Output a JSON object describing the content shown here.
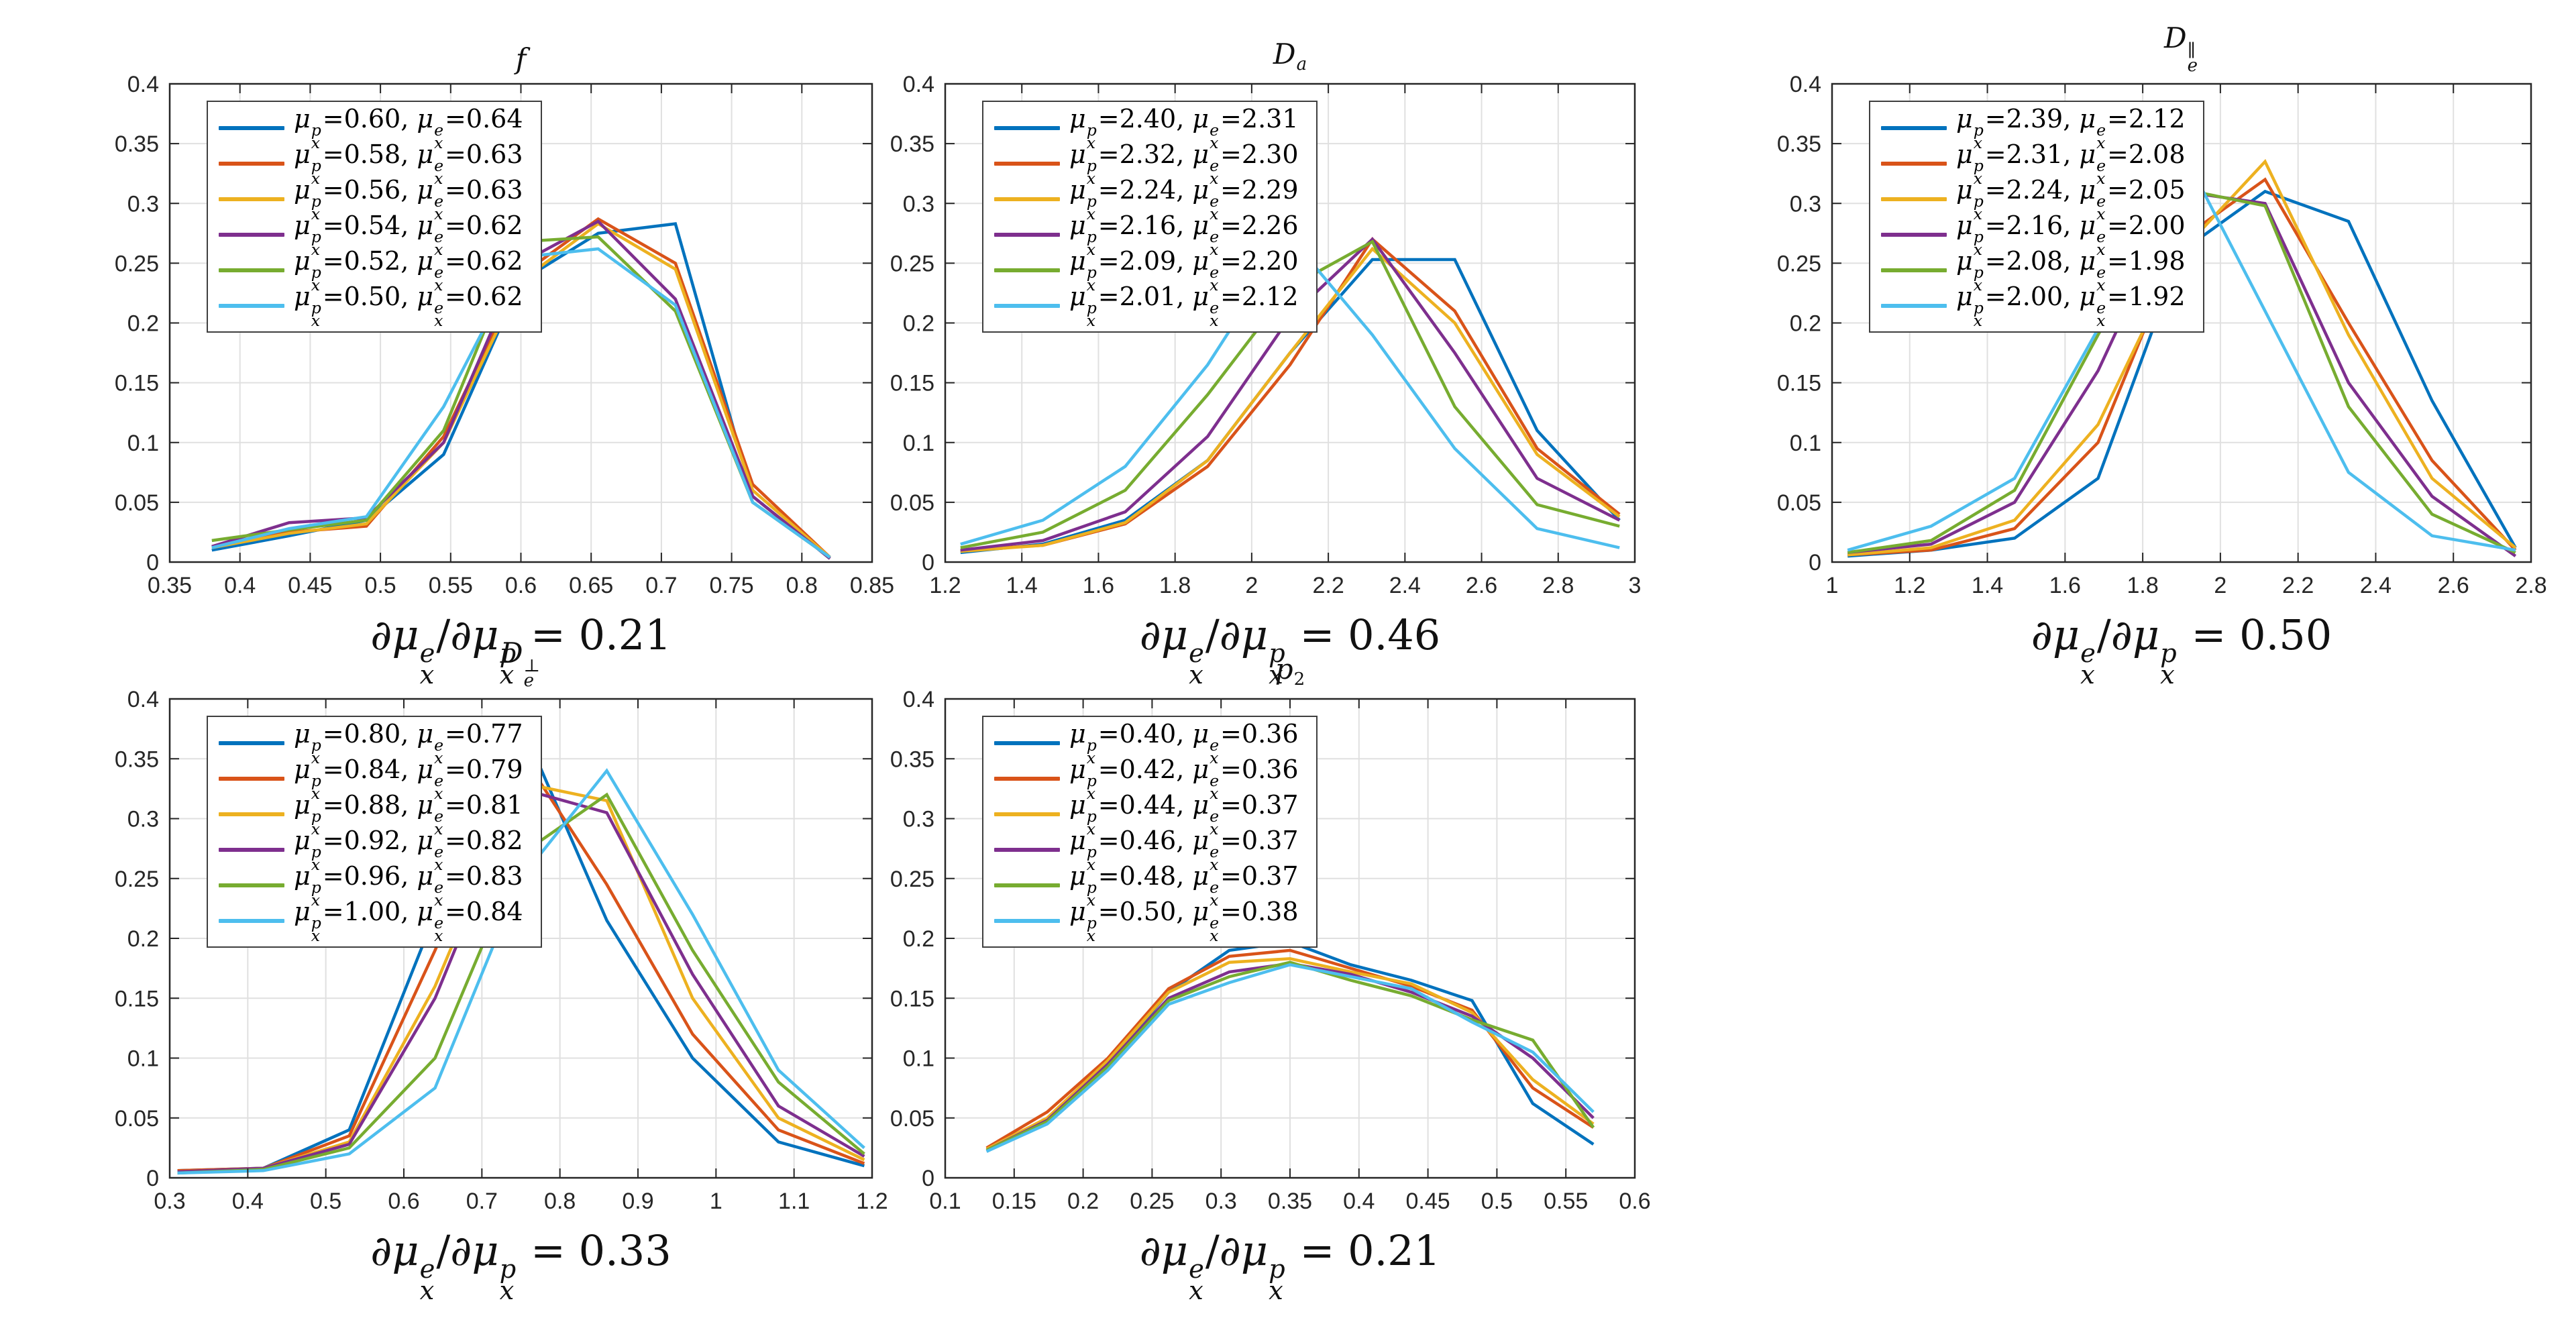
{
  "figure": {
    "background": "#ffffff",
    "series_colors": [
      "#0072bd",
      "#d95319",
      "#edb120",
      "#7e2f8e",
      "#77ac30",
      "#4dbeee"
    ],
    "grid_color": "#e0e0e0",
    "axis_color": "#262626",
    "text_color": "#262626"
  },
  "math": {
    "mu": "μ",
    "partial": "∂",
    "sub_x": "x",
    "sup_p": "p",
    "sup_e": "e",
    "equals": "=",
    "comma": ", ",
    "slash": "/"
  },
  "chart_data": [
    {
      "type": "line",
      "title": {
        "base": "f",
        "sub": "",
        "sup": ""
      },
      "xlabel_lhs": "∂μ_x^e/∂μ_x^p",
      "xlabel_value": "0.21",
      "legend_position": "top-left",
      "grid": true,
      "xlim": [
        0.35,
        0.85
      ],
      "ylim": [
        0,
        0.4
      ],
      "xtick_values": [
        0.35,
        0.4,
        0.45,
        0.5,
        0.55,
        0.6,
        0.65,
        0.7,
        0.75,
        0.8,
        0.85
      ],
      "xtick_labels": [
        "0.35",
        "0.4",
        "0.45",
        "0.5",
        "0.55",
        "0.6",
        "0.65",
        "0.7",
        "0.75",
        "0.8",
        "0.85"
      ],
      "ytick_values": [
        0,
        0.05,
        0.1,
        0.15,
        0.2,
        0.25,
        0.3,
        0.35,
        0.4
      ],
      "ytick_labels": [
        "0",
        "0.05",
        "0.1",
        "0.15",
        "0.2",
        "0.25",
        "0.3",
        "0.35",
        "0.4"
      ],
      "x": [
        0.38,
        0.435,
        0.49,
        0.545,
        0.6,
        0.655,
        0.71,
        0.765,
        0.82
      ],
      "series": [
        {
          "mu_p": "0.60",
          "mu_e": "0.64",
          "values": [
            0.01,
            0.022,
            0.035,
            0.09,
            0.235,
            0.275,
            0.283,
            0.055,
            0.003
          ]
        },
        {
          "mu_p": "0.58",
          "mu_e": "0.63",
          "values": [
            0.012,
            0.025,
            0.03,
            0.105,
            0.24,
            0.287,
            0.25,
            0.065,
            0.004
          ]
        },
        {
          "mu_p": "0.56",
          "mu_e": "0.63",
          "values": [
            0.012,
            0.024,
            0.032,
            0.1,
            0.235,
            0.283,
            0.245,
            0.06,
            0.004
          ]
        },
        {
          "mu_p": "0.54",
          "mu_e": "0.62",
          "values": [
            0.013,
            0.033,
            0.037,
            0.1,
            0.25,
            0.285,
            0.22,
            0.055,
            0.003
          ]
        },
        {
          "mu_p": "0.52",
          "mu_e": "0.62",
          "values": [
            0.018,
            0.027,
            0.035,
            0.11,
            0.268,
            0.272,
            0.21,
            0.05,
            0.004
          ]
        },
        {
          "mu_p": "0.50",
          "mu_e": "0.62",
          "values": [
            0.012,
            0.028,
            0.038,
            0.13,
            0.255,
            0.262,
            0.215,
            0.05,
            0.004
          ]
        }
      ]
    },
    {
      "type": "line",
      "title": {
        "base": "D",
        "sub": "a",
        "sup": ""
      },
      "xlabel_lhs": "∂μ_x^e/∂μ_x^p",
      "xlabel_value": "0.46",
      "legend_position": "top-left",
      "grid": true,
      "xlim": [
        1.2,
        3
      ],
      "ylim": [
        0,
        0.4
      ],
      "xtick_values": [
        1.2,
        1.4,
        1.6,
        1.8,
        2,
        2.2,
        2.4,
        2.6,
        2.8,
        3
      ],
      "xtick_labels": [
        "1.2",
        "1.4",
        "1.6",
        "1.8",
        "2",
        "2.2",
        "2.4",
        "2.6",
        "2.8",
        "3"
      ],
      "ytick_values": [
        0,
        0.05,
        0.1,
        0.15,
        0.2,
        0.25,
        0.3,
        0.35,
        0.4
      ],
      "ytick_labels": [
        "0",
        "0.05",
        "0.1",
        "0.15",
        "0.2",
        "0.25",
        "0.3",
        "0.35",
        "0.4"
      ],
      "x": [
        1.24,
        1.455,
        1.67,
        1.885,
        2.1,
        2.315,
        2.53,
        2.745,
        2.96
      ],
      "series": [
        {
          "mu_p": "2.40",
          "mu_e": "2.31",
          "values": [
            0.008,
            0.015,
            0.035,
            0.085,
            0.175,
            0.253,
            0.253,
            0.11,
            0.035
          ]
        },
        {
          "mu_p": "2.32",
          "mu_e": "2.30",
          "values": [
            0.01,
            0.014,
            0.032,
            0.08,
            0.165,
            0.27,
            0.21,
            0.095,
            0.04
          ]
        },
        {
          "mu_p": "2.24",
          "mu_e": "2.29",
          "values": [
            0.009,
            0.014,
            0.033,
            0.085,
            0.175,
            0.262,
            0.2,
            0.09,
            0.038
          ]
        },
        {
          "mu_p": "2.16",
          "mu_e": "2.26",
          "values": [
            0.01,
            0.018,
            0.042,
            0.105,
            0.205,
            0.27,
            0.175,
            0.07,
            0.035
          ]
        },
        {
          "mu_p": "2.09",
          "mu_e": "2.20",
          "values": [
            0.012,
            0.025,
            0.06,
            0.14,
            0.23,
            0.268,
            0.13,
            0.048,
            0.03
          ]
        },
        {
          "mu_p": "2.01",
          "mu_e": "2.12",
          "values": [
            0.015,
            0.035,
            0.08,
            0.165,
            0.272,
            0.19,
            0.095,
            0.028,
            0.012
          ]
        }
      ]
    },
    {
      "type": "line",
      "title": {
        "base": "D",
        "sub": "e",
        "sup": "∥"
      },
      "xlabel_lhs": "∂μ_x^e/∂μ_x^p",
      "xlabel_value": "0.50",
      "legend_position": "top-left",
      "grid": true,
      "xlim": [
        1,
        2.8
      ],
      "ylim": [
        0,
        0.4
      ],
      "xtick_values": [
        1,
        1.2,
        1.4,
        1.6,
        1.8,
        2,
        2.2,
        2.4,
        2.6,
        2.8
      ],
      "xtick_labels": [
        "1",
        "1.2",
        "1.4",
        "1.6",
        "1.8",
        "2",
        "2.2",
        "2.4",
        "2.6",
        "2.8"
      ],
      "ytick_values": [
        0,
        0.05,
        0.1,
        0.15,
        0.2,
        0.25,
        0.3,
        0.35,
        0.4
      ],
      "ytick_labels": [
        "0",
        "0.05",
        "0.1",
        "0.15",
        "0.2",
        "0.25",
        "0.3",
        "0.35",
        "0.4"
      ],
      "x": [
        1.04,
        1.255,
        1.47,
        1.685,
        1.9,
        2.115,
        2.33,
        2.545,
        2.76
      ],
      "series": [
        {
          "mu_p": "2.39",
          "mu_e": "2.12",
          "values": [
            0.005,
            0.01,
            0.02,
            0.07,
            0.26,
            0.31,
            0.285,
            0.135,
            0.012
          ]
        },
        {
          "mu_p": "2.31",
          "mu_e": "2.08",
          "values": [
            0.006,
            0.01,
            0.028,
            0.1,
            0.27,
            0.32,
            0.2,
            0.085,
            0.01
          ]
        },
        {
          "mu_p": "2.24",
          "mu_e": "2.05",
          "values": [
            0.006,
            0.012,
            0.035,
            0.115,
            0.26,
            0.335,
            0.19,
            0.07,
            0.012
          ]
        },
        {
          "mu_p": "2.16",
          "mu_e": "2.00",
          "values": [
            0.008,
            0.015,
            0.05,
            0.16,
            0.31,
            0.3,
            0.15,
            0.055,
            0.005
          ]
        },
        {
          "mu_p": "2.08",
          "mu_e": "1.98",
          "values": [
            0.008,
            0.018,
            0.06,
            0.19,
            0.312,
            0.298,
            0.13,
            0.04,
            0.008
          ]
        },
        {
          "mu_p": "2.00",
          "mu_e": "1.92",
          "values": [
            0.01,
            0.03,
            0.07,
            0.195,
            0.345,
            0.21,
            0.075,
            0.022,
            0.01
          ]
        }
      ]
    },
    {
      "type": "line",
      "title": {
        "base": "D",
        "sub": "e",
        "sup": "⊥"
      },
      "xlabel_lhs": "∂μ_x^e/∂μ_x^p",
      "xlabel_value": "0.33",
      "legend_position": "top-left",
      "grid": true,
      "xlim": [
        0.3,
        1.2
      ],
      "ylim": [
        0,
        0.4
      ],
      "xtick_values": [
        0.3,
        0.4,
        0.5,
        0.6,
        0.7,
        0.8,
        0.9,
        1,
        1.1,
        1.2
      ],
      "xtick_labels": [
        "0.3",
        "0.4",
        "0.5",
        "0.6",
        "0.7",
        "0.8",
        "0.9",
        "1",
        "1.1",
        "1.2"
      ],
      "ytick_values": [
        0,
        0.05,
        0.1,
        0.15,
        0.2,
        0.25,
        0.3,
        0.35,
        0.4
      ],
      "ytick_labels": [
        "0",
        "0.05",
        "0.1",
        "0.15",
        "0.2",
        "0.25",
        "0.3",
        "0.35",
        "0.4"
      ],
      "x": [
        0.31,
        0.42,
        0.53,
        0.64,
        0.75,
        0.86,
        0.97,
        1.08,
        1.19
      ],
      "series": [
        {
          "mu_p": "0.80",
          "mu_e": "0.77",
          "values": [
            0.006,
            0.008,
            0.04,
            0.22,
            0.38,
            0.215,
            0.1,
            0.03,
            0.01
          ]
        },
        {
          "mu_p": "0.84",
          "mu_e": "0.79",
          "values": [
            0.006,
            0.008,
            0.035,
            0.19,
            0.355,
            0.245,
            0.12,
            0.04,
            0.012
          ]
        },
        {
          "mu_p": "0.88",
          "mu_e": "0.81",
          "values": [
            0.005,
            0.008,
            0.03,
            0.16,
            0.33,
            0.315,
            0.15,
            0.05,
            0.015
          ]
        },
        {
          "mu_p": "0.92",
          "mu_e": "0.82",
          "values": [
            0.005,
            0.008,
            0.028,
            0.15,
            0.325,
            0.305,
            0.17,
            0.06,
            0.018
          ]
        },
        {
          "mu_p": "0.96",
          "mu_e": "0.83",
          "values": [
            0.004,
            0.007,
            0.025,
            0.1,
            0.27,
            0.32,
            0.19,
            0.08,
            0.02
          ]
        },
        {
          "mu_p": "1.00",
          "mu_e": "0.84",
          "values": [
            0.004,
            0.006,
            0.02,
            0.075,
            0.25,
            0.34,
            0.22,
            0.09,
            0.025
          ]
        }
      ]
    },
    {
      "type": "line",
      "title": {
        "base": "p",
        "sub": "2",
        "sup": ""
      },
      "xlabel_lhs": "∂μ_x^e/∂μ_x^p",
      "xlabel_value": "0.21",
      "legend_position": "top-left",
      "grid": true,
      "xlim": [
        0.1,
        0.6
      ],
      "ylim": [
        0,
        0.4
      ],
      "xtick_values": [
        0.1,
        0.15,
        0.2,
        0.25,
        0.3,
        0.35,
        0.4,
        0.45,
        0.5,
        0.55,
        0.6
      ],
      "xtick_labels": [
        "0.1",
        "0.15",
        "0.2",
        "0.25",
        "0.3",
        "0.35",
        "0.4",
        "0.45",
        "0.5",
        "0.55",
        "0.6"
      ],
      "ytick_values": [
        0,
        0.05,
        0.1,
        0.15,
        0.2,
        0.25,
        0.3,
        0.35,
        0.4
      ],
      "ytick_labels": [
        "0",
        "0.05",
        "0.1",
        "0.15",
        "0.2",
        "0.25",
        "0.3",
        "0.35",
        "0.4"
      ],
      "x": [
        0.13,
        0.174,
        0.218,
        0.262,
        0.306,
        0.35,
        0.394,
        0.438,
        0.482,
        0.526,
        0.57
      ],
      "series": [
        {
          "mu_p": "0.40",
          "mu_e": "0.36",
          "values": [
            0.022,
            0.048,
            0.095,
            0.155,
            0.19,
            0.197,
            0.178,
            0.165,
            0.148,
            0.062,
            0.028
          ]
        },
        {
          "mu_p": "0.42",
          "mu_e": "0.36",
          "values": [
            0.025,
            0.055,
            0.1,
            0.158,
            0.185,
            0.19,
            0.175,
            0.16,
            0.14,
            0.075,
            0.042
          ]
        },
        {
          "mu_p": "0.44",
          "mu_e": "0.37",
          "values": [
            0.024,
            0.05,
            0.098,
            0.155,
            0.18,
            0.183,
            0.172,
            0.162,
            0.138,
            0.082,
            0.045
          ]
        },
        {
          "mu_p": "0.46",
          "mu_e": "0.37",
          "values": [
            0.023,
            0.048,
            0.095,
            0.15,
            0.172,
            0.179,
            0.17,
            0.155,
            0.135,
            0.1,
            0.05
          ]
        },
        {
          "mu_p": "0.48",
          "mu_e": "0.37",
          "values": [
            0.023,
            0.047,
            0.093,
            0.148,
            0.168,
            0.18,
            0.165,
            0.152,
            0.132,
            0.115,
            0.042
          ]
        },
        {
          "mu_p": "0.50",
          "mu_e": "0.38",
          "values": [
            0.022,
            0.045,
            0.09,
            0.145,
            0.163,
            0.178,
            0.168,
            0.158,
            0.13,
            0.105,
            0.055
          ]
        }
      ]
    }
  ]
}
